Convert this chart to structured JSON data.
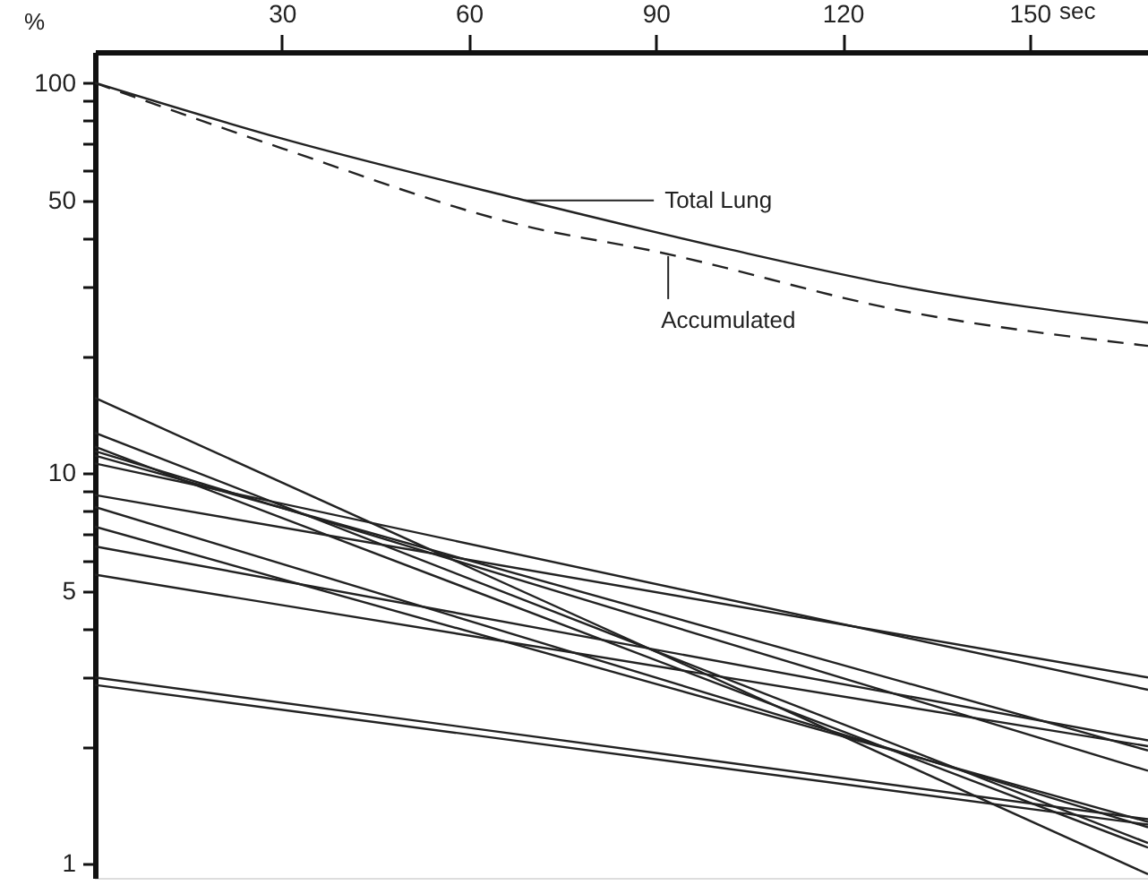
{
  "chart_data": {
    "type": "line",
    "xlabel": "sec",
    "ylabel": "%",
    "xlim": [
      0,
      169
    ],
    "xticks": [
      30,
      60,
      90,
      120,
      150
    ],
    "ylim": [
      0.92,
      120
    ],
    "yticks": [
      1,
      {
        "value": 2,
        "label": null
      },
      {
        "value": 3,
        "label": null
      },
      {
        "value": 4,
        "label": null
      },
      5,
      {
        "value": 6,
        "label": null
      },
      {
        "value": 7,
        "label": null
      },
      {
        "value": 8,
        "label": null
      },
      {
        "value": 9,
        "label": null
      },
      10,
      {
        "value": 20,
        "label": null
      },
      {
        "value": 30,
        "label": null
      },
      {
        "value": 40,
        "label": null
      },
      50,
      {
        "value": 60,
        "label": null
      },
      {
        "value": 70,
        "label": null
      },
      {
        "value": 80,
        "label": null
      },
      {
        "value": 90,
        "label": null
      },
      100
    ],
    "log": "y",
    "grid": false,
    "series": [
      {
        "color": "#222222",
        "line_style": "solid",
        "x": [
          0,
          30,
          69,
          102,
          130,
          169
        ],
        "values": [
          100,
          72,
          50,
          37.4,
          30,
          24.3
        ]
      },
      {
        "color": "#222222",
        "line_style": "dashed",
        "x": [
          0,
          30,
          69,
          90,
          130,
          169
        ],
        "values": [
          100,
          68,
          43,
          37,
          26,
          21.2
        ]
      },
      {
        "color": "#222222",
        "line_style": "solid",
        "x": [
          0,
          169
        ],
        "values": [
          15.6,
          0.94
        ]
      },
      {
        "color": "#222222",
        "line_style": "solid",
        "x": [
          0,
          169
        ],
        "values": [
          12.7,
          1.13
        ]
      },
      {
        "color": "#222222",
        "line_style": "solid",
        "x": [
          0,
          169
        ],
        "values": [
          11.7,
          1.1
        ]
      },
      {
        "color": "#222222",
        "line_style": "solid",
        "x": [
          0,
          169
        ],
        "values": [
          11.4,
          1.73
        ]
      },
      {
        "color": "#222222",
        "line_style": "solid",
        "x": [
          0,
          169
        ],
        "values": [
          11.1,
          1.95
        ]
      },
      {
        "color": "#222222",
        "line_style": "solid",
        "x": [
          0,
          169
        ],
        "values": [
          10.6,
          2.79
        ]
      },
      {
        "color": "#222222",
        "line_style": "solid",
        "x": [
          0,
          169
        ],
        "values": [
          8.8,
          3.0
        ]
      },
      {
        "color": "#222222",
        "line_style": "solid",
        "x": [
          0,
          169
        ],
        "values": [
          8.2,
          1.24
        ]
      },
      {
        "color": "#222222",
        "line_style": "solid",
        "x": [
          0,
          169
        ],
        "values": [
          7.3,
          1.28
        ]
      },
      {
        "color": "#222222",
        "line_style": "solid",
        "x": [
          0,
          169
        ],
        "values": [
          6.5,
          2.07
        ]
      },
      {
        "color": "#222222",
        "line_style": "solid",
        "x": [
          0,
          169
        ],
        "values": [
          5.5,
          2.0
        ]
      },
      {
        "color": "#222222",
        "line_style": "solid",
        "x": [
          0,
          169
        ],
        "values": [
          3.0,
          1.3
        ]
      },
      {
        "color": "#222222",
        "line_style": "solid",
        "x": [
          0,
          169
        ],
        "values": [
          2.87,
          1.26
        ]
      }
    ],
    "annotations": [
      {
        "text": "Total Lung",
        "x": 69,
        "y": 50
      },
      {
        "text": "Accumulated",
        "x": 92,
        "y": 36
      }
    ]
  }
}
